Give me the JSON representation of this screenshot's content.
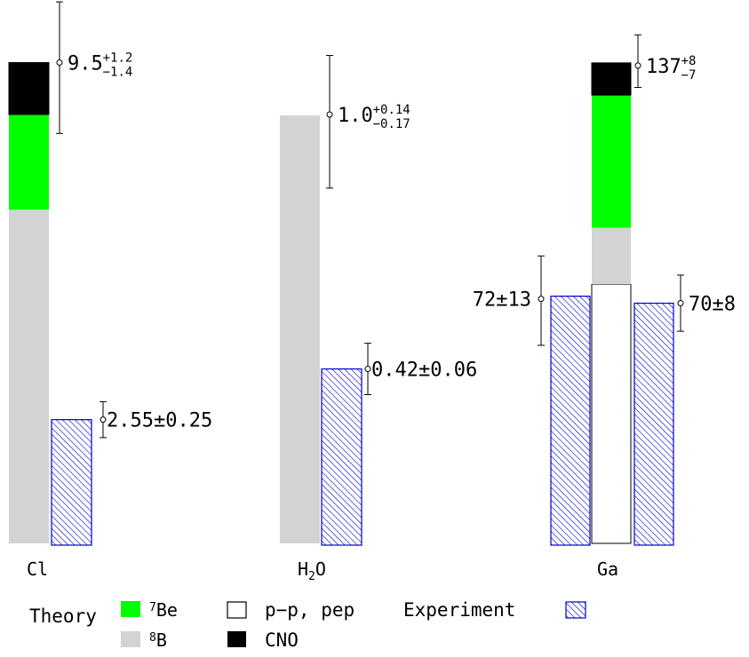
{
  "chart_data": {
    "type": "bar",
    "stacked_theory": true,
    "components": [
      {
        "key": "pp",
        "name": "p−p, pep",
        "color": "#ffffff"
      },
      {
        "key": "b8",
        "name": "8B",
        "color": "#d3d3d3"
      },
      {
        "key": "be7",
        "name": "7Be",
        "color": "#00ff00"
      },
      {
        "key": "cno",
        "name": "CNO",
        "color": "#000000"
      }
    ],
    "experiment_style": {
      "name": "Experiment",
      "color": "#0000cc",
      "pattern": "diagonal-hatch"
    },
    "experiments": [
      {
        "id": "cl",
        "label": "Cl",
        "label_sub": "",
        "theory": {
          "value": 9.5,
          "plus": 1.2,
          "minus": 1.4,
          "pp": 0.0,
          "b8": 0.694,
          "be7": 0.198,
          "cno": 0.108
        },
        "measured": {
          "value": 2.55,
          "plus": 0.25,
          "minus": 0.25
        },
        "theory_text": {
          "main": "9.5",
          "sup": "+1.2",
          "sub": "−1.4"
        },
        "measured_text": "2.55±0.25"
      },
      {
        "id": "h2o",
        "label": "H",
        "label_sub": "2",
        "label_tail": "O",
        "theory": {
          "value": 1.0,
          "plus": 0.14,
          "minus": 0.17,
          "pp": 0.0,
          "b8": 1.0,
          "be7": 0.0,
          "cno": 0.0
        },
        "measured": {
          "value": 0.42,
          "plus": 0.06,
          "minus": 0.06
        },
        "theory_text": {
          "main": "1.0",
          "sup": "+0.14",
          "sub": "−0.17"
        },
        "measured_text": "0.42±0.06"
      },
      {
        "id": "ga",
        "label": "Ga",
        "label_sub": "",
        "theory": {
          "value": 137,
          "plus": 8,
          "minus": 7,
          "pp": 0.539,
          "b8": 0.118,
          "be7": 0.276,
          "cno": 0.067
        },
        "measured_a": {
          "value": 72,
          "plus": 13,
          "minus": 13
        },
        "measured_b": {
          "value": 70,
          "plus": 8,
          "minus": 8
        },
        "theory_text": {
          "main": "137",
          "sup": "+8",
          "sub": "−7"
        },
        "measured_a_text": "72±13",
        "measured_b_text": "70±8"
      }
    ],
    "legend": {
      "theory_label": "Theory",
      "experiment_label": "Experiment",
      "be7": "7Be",
      "b8": "8B",
      "pp": "p−p, pep",
      "cno": "CNO"
    }
  }
}
